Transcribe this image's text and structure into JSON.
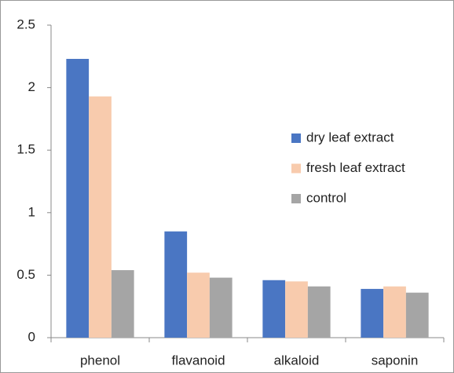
{
  "chart_data": {
    "type": "bar",
    "categories": [
      "phenol",
      "flavanoid",
      "alkaloid",
      "saponin"
    ],
    "series": [
      {
        "name": "dry leaf extract",
        "color": "#4a76c3",
        "values": [
          2.23,
          0.85,
          0.46,
          0.39
        ]
      },
      {
        "name": "fresh leaf extract",
        "color": "#f8cbad",
        "values": [
          1.93,
          0.52,
          0.45,
          0.41
        ]
      },
      {
        "name": "control",
        "color": "#a5a5a5",
        "values": [
          0.54,
          0.48,
          0.41,
          0.36
        ]
      }
    ],
    "ylim": [
      0,
      2.5
    ],
    "yticks": [
      0,
      0.5,
      1,
      1.5,
      2,
      2.5
    ],
    "grid": false,
    "legend": "right"
  }
}
